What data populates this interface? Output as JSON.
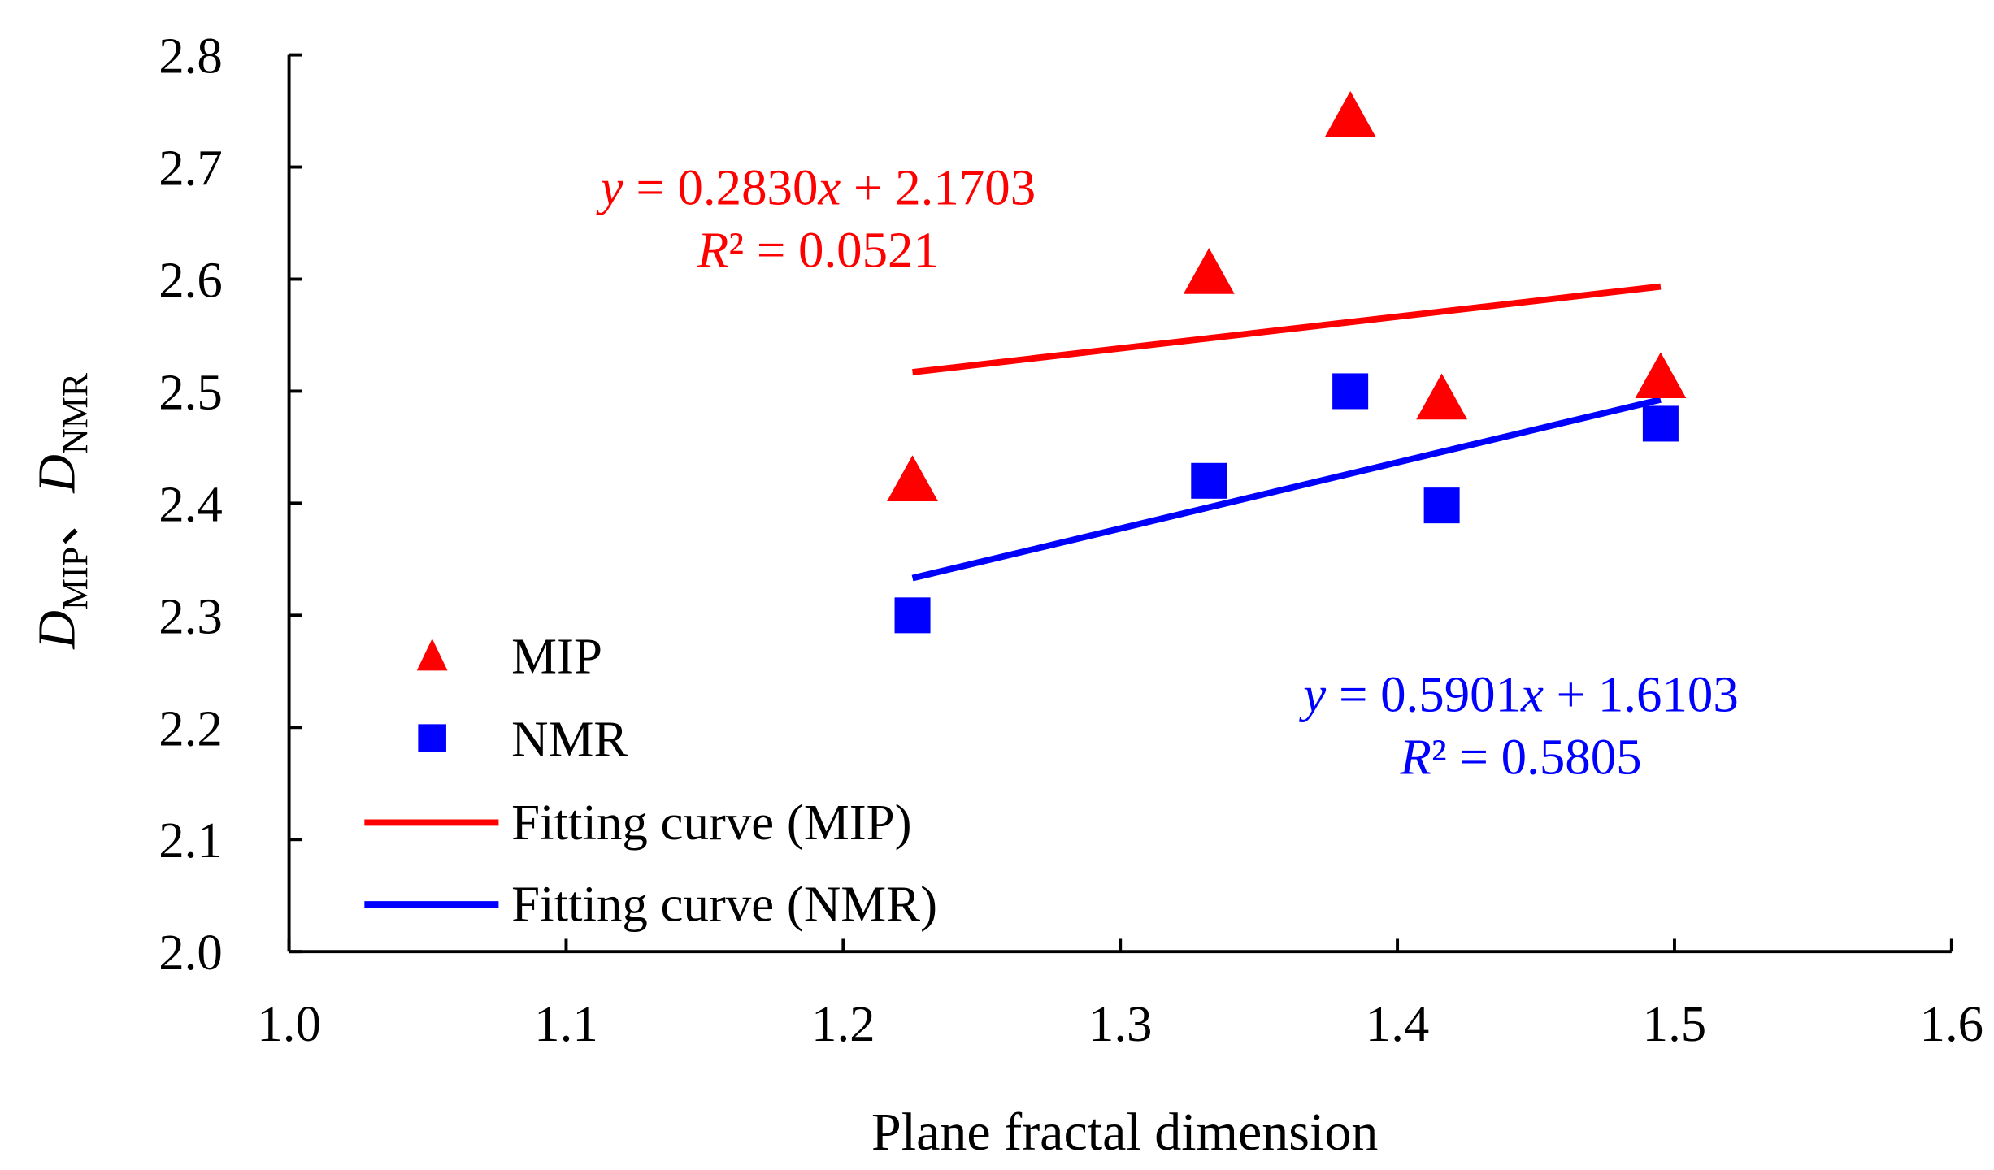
{
  "chart_data": {
    "type": "scatter",
    "title": "",
    "xlabel": "Plane fractal dimension",
    "ylabel": {
      "d1": "D",
      "s1": "MIP",
      "sep": "、",
      "d2": "D",
      "s2": "NMR"
    },
    "xlim": [
      1.0,
      1.6
    ],
    "ylim": [
      2.0,
      2.8
    ],
    "xticks": [
      "1.0",
      "1.1",
      "1.2",
      "1.3",
      "1.4",
      "1.5",
      "1.6"
    ],
    "yticks": [
      "2.0",
      "2.1",
      "2.2",
      "2.3",
      "2.4",
      "2.5",
      "2.6",
      "2.7",
      "2.8"
    ],
    "grid": false,
    "legend_placement": "bottom-left",
    "series": [
      {
        "name": "MIP",
        "marker": "triangle",
        "color": "#ff0000",
        "x": [
          1.225,
          1.332,
          1.383,
          1.416,
          1.495
        ],
        "y": [
          2.42,
          2.605,
          2.745,
          2.493,
          2.512
        ]
      },
      {
        "name": "NMR",
        "marker": "square",
        "color": "#0000ff",
        "x": [
          1.225,
          1.332,
          1.383,
          1.416,
          1.495
        ],
        "y": [
          2.3,
          2.42,
          2.5,
          2.398,
          2.471
        ]
      }
    ],
    "fits": [
      {
        "name": "Fitting curve (MIP)",
        "color": "#ff0000",
        "slope": 0.283,
        "intercept": 2.1703,
        "x_range": [
          1.225,
          1.495
        ],
        "eq": {
          "y": "y",
          "mid": " = 0.2830",
          "x": "x",
          "tail": " + 2.1703",
          "r": "R",
          "r2": "² = 0.0521"
        }
      },
      {
        "name": "Fitting curve (NMR)",
        "color": "#0000ff",
        "slope": 0.5901,
        "intercept": 1.6103,
        "x_range": [
          1.225,
          1.495
        ],
        "eq": {
          "y": "y",
          "mid": " = 0.5901",
          "x": "x",
          "tail": " + 1.6103",
          "r": "R",
          "r2": "² = 0.5805"
        }
      }
    ]
  }
}
